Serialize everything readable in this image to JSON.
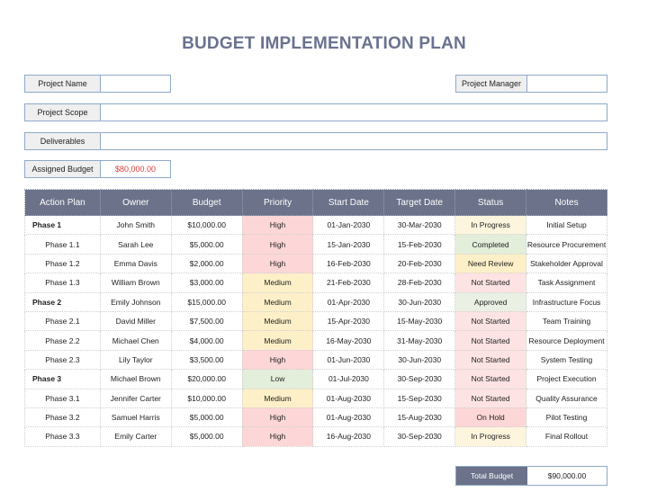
{
  "title": "BUDGET IMPLEMENTATION PLAN",
  "fields": {
    "project_name": {
      "label": "Project Name",
      "value": ""
    },
    "project_manager": {
      "label": "Project Manager",
      "value": ""
    },
    "project_scope": {
      "label": "Project Scope",
      "value": ""
    },
    "deliverables": {
      "label": "Deliverables",
      "value": ""
    },
    "assigned_budget": {
      "label": "Assigned Budget",
      "value": "$80,000.00"
    }
  },
  "table": {
    "headers": [
      "Action Plan",
      "Owner",
      "Budget",
      "Priority",
      "Start Date",
      "Target Date",
      "Status",
      "Notes"
    ],
    "rows": [
      [
        "Phase 1",
        "John Smith",
        "$10,000.00",
        "High",
        "01-Jan-2030",
        "30-Mar-2030",
        "In Progress",
        "Initial Setup"
      ],
      [
        "Phase 1.1",
        "Sarah Lee",
        "$5,000.00",
        "High",
        "15-Jan-2030",
        "15-Feb-2030",
        "Completed",
        "Resource Procurement"
      ],
      [
        "Phase 1.2",
        "Emma Davis",
        "$2,000.00",
        "High",
        "16-Feb-2030",
        "20-Feb-2030",
        "Need Review",
        "Stakeholder Approval"
      ],
      [
        "Phase 1.3",
        "William Brown",
        "$3,000.00",
        "Medium",
        "21-Feb-2030",
        "28-Feb-2030",
        "Not Started",
        "Task Assignment"
      ],
      [
        "Phase 2",
        "Emily Johnson",
        "$15,000.00",
        "Medium",
        "01-Apr-2030",
        "30-Jun-2030",
        "Approved",
        "Infrastructure Focus"
      ],
      [
        "Phase 2.1",
        "David Miller",
        "$7,500.00",
        "Medium",
        "15-Apr-2030",
        "15-May-2030",
        "Not Started",
        "Team Training"
      ],
      [
        "Phase 2.2",
        "Michael Chen",
        "$4,000.00",
        "Medium",
        "16-May-2030",
        "31-May-2030",
        "Not Started",
        "Resource Deployment"
      ],
      [
        "Phase 2.3",
        "Lily Taylor",
        "$3,500.00",
        "High",
        "01-Jun-2030",
        "30-Jun-2030",
        "Not Started",
        "System Testing"
      ],
      [
        "Phase 3",
        "Michael Brown",
        "$20,000.00",
        "Low",
        "01-Jul-2030",
        "30-Sep-2030",
        "Not Started",
        "Project Execution"
      ],
      [
        "Phase 3.1",
        "Jennifer Carter",
        "$10,000.00",
        "Medium",
        "01-Aug-2030",
        "15-Sep-2030",
        "Not Started",
        "Quality Assurance"
      ],
      [
        "Phase 3.2",
        "Samuel Harris",
        "$5,000.00",
        "High",
        "01-Aug-2030",
        "15-Aug-2030",
        "On Hold",
        "Pilot Testing"
      ],
      [
        "Phase 3.3",
        "Emily Carter",
        "$5,000.00",
        "High",
        "16-Aug-2030",
        "30-Sep-2030",
        "In Progress",
        "Final Rollout"
      ]
    ]
  },
  "total": {
    "label": "Total Budget",
    "value": "$90,000.00"
  },
  "colors": {
    "header": "#6b7289",
    "title": "#6a7290",
    "high": "#fdd7d7",
    "medium": "#fdf0c9",
    "low": "#e3eedb",
    "assigned_budget": "#e23b3b"
  }
}
